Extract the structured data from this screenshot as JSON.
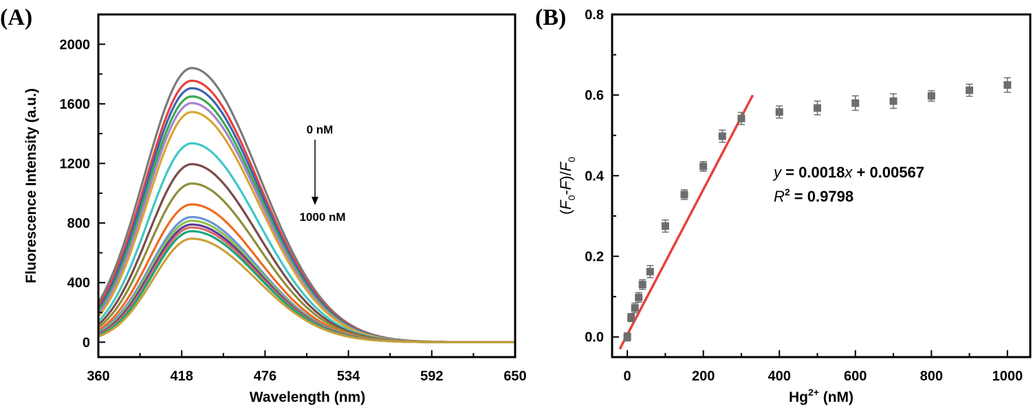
{
  "chart_data": [
    {
      "type": "line",
      "panel_label": "(A)",
      "xlabel": "Wavelength (nm)",
      "ylabel": "Fluorescence Intensity (a.u.)",
      "xlim": [
        360,
        650
      ],
      "ylim": [
        -100,
        2200
      ],
      "xticks": [
        360,
        418,
        476,
        534,
        592,
        650
      ],
      "yticks": [
        0,
        400,
        800,
        1200,
        1600,
        2000
      ],
      "peak_wavelength": 425,
      "series_peaks": [
        1840,
        1755,
        1705,
        1650,
        1605,
        1545,
        1335,
        1195,
        1065,
        925,
        840,
        815,
        790,
        770,
        745,
        695
      ],
      "series_colors": [
        "#7a7a7a",
        "#e8413c",
        "#3b64b3",
        "#3aaa4f",
        "#a583cf",
        "#d9a531",
        "#3ec7c7",
        "#7b4a4a",
        "#8e8e3b",
        "#f26a1f",
        "#6b93d6",
        "#8cc152",
        "#5b3c96",
        "#d86a6a",
        "#1aa67a",
        "#c9a03a"
      ],
      "annotation_top": "0 nM",
      "annotation_bottom": "1000 nM"
    },
    {
      "type": "scatter",
      "panel_label": "(B)",
      "xlabel_main": "Hg",
      "xlabel_sup": "2+",
      "xlabel_unit": " (nM)",
      "ylabel_parts": [
        "(",
        "F",
        "0",
        "-",
        "F",
        ")/",
        "F",
        "0"
      ],
      "xlim": [
        -40,
        1060
      ],
      "ylim": [
        -0.05,
        0.8
      ],
      "xticks": [
        0,
        200,
        400,
        600,
        800,
        1000
      ],
      "yticks": [
        0.0,
        0.2,
        0.4,
        0.6,
        0.8
      ],
      "x": [
        0,
        10,
        20,
        30,
        40,
        60,
        100,
        150,
        200,
        250,
        300,
        400,
        500,
        600,
        700,
        800,
        900,
        1000
      ],
      "y": [
        0.0,
        0.048,
        0.072,
        0.098,
        0.13,
        0.162,
        0.275,
        0.353,
        0.423,
        0.498,
        0.542,
        0.558,
        0.568,
        0.58,
        0.585,
        0.598,
        0.612,
        0.625
      ],
      "yerr": [
        0.01,
        0.01,
        0.012,
        0.012,
        0.012,
        0.015,
        0.015,
        0.012,
        0.012,
        0.015,
        0.015,
        0.015,
        0.017,
        0.018,
        0.018,
        0.013,
        0.015,
        0.018
      ],
      "marker_color": "#6d6d6d",
      "fit": {
        "slope": 0.0018,
        "intercept": 0.00567,
        "x_range": [
          -20,
          330
        ],
        "color": "#e8413c"
      },
      "equation": {
        "y_var": "y",
        "eq_rest": " = 0.0018",
        "x_var": "x",
        "eq_tail": " + 0.00567"
      },
      "r2": {
        "r_var": "R",
        "sup": "2",
        "value": " = 0.9798"
      }
    }
  ]
}
